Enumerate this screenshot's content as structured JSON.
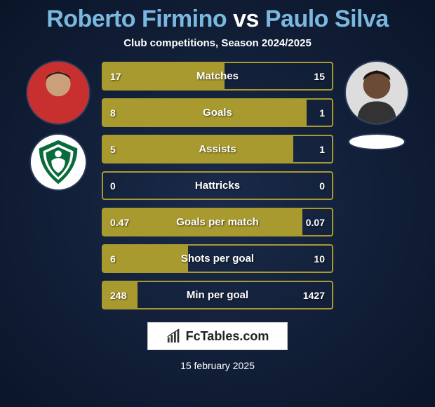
{
  "title": {
    "player1": "Roberto Firmino",
    "vs": "vs",
    "player2": "Paulo Silva",
    "player1_color": "#7bb8e0",
    "vs_color": "#ffffff",
    "player2_color": "#7bb8e0"
  },
  "subtitle": "Club competitions, Season 2024/2025",
  "left": {
    "player_bg": "#c83030",
    "club_bg": "#ffffff",
    "club_shield_fill": "#0a6b3a"
  },
  "right": {
    "player_bg": "#555555",
    "club_bg": "#ffffff"
  },
  "bars": {
    "border_color": "#a89a2e",
    "fill_color": "#a89a2e",
    "rows": [
      {
        "label": "Matches",
        "left": "17",
        "right": "15",
        "fill_pct": 53
      },
      {
        "label": "Goals",
        "left": "8",
        "right": "1",
        "fill_pct": 89
      },
      {
        "label": "Assists",
        "left": "5",
        "right": "1",
        "fill_pct": 83
      },
      {
        "label": "Hattricks",
        "left": "0",
        "right": "0",
        "fill_pct": 0
      },
      {
        "label": "Goals per match",
        "left": "0.47",
        "right": "0.07",
        "fill_pct": 87
      },
      {
        "label": "Shots per goal",
        "left": "6",
        "right": "10",
        "fill_pct": 37
      },
      {
        "label": "Min per goal",
        "left": "248",
        "right": "1427",
        "fill_pct": 15
      }
    ]
  },
  "branding": "FcTables.com",
  "date": "15 february 2025",
  "colors": {
    "page_bg_inner": "#1a2a4a",
    "page_bg_outer": "#0a1528",
    "text_white": "#ffffff"
  }
}
